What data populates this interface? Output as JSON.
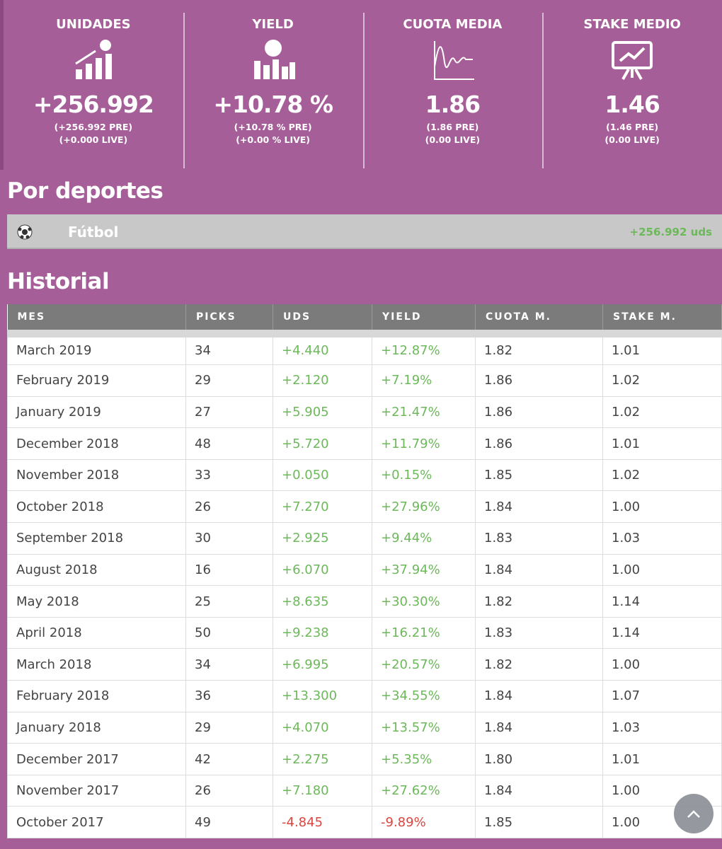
{
  "stats": [
    {
      "label": "UNIDADES",
      "value": "+256.992",
      "pre": "(+256.992 PRE)",
      "live": "(+0.000 LIVE)"
    },
    {
      "label": "YIELD",
      "value": "+10.78 %",
      "pre": "(+10.78 % PRE)",
      "live": "(+0.00 % LIVE)"
    },
    {
      "label": "CUOTA MEDIA",
      "value": "1.86",
      "pre": "(1.86 PRE)",
      "live": "(0.00 LIVE)"
    },
    {
      "label": "STAKE MEDIO",
      "value": "1.46",
      "pre": "(1.46 PRE)",
      "live": "(0.00 LIVE)"
    }
  ],
  "sports": {
    "title": "Por deportes",
    "name": "Fútbol",
    "value": "+256.992 uds"
  },
  "history": {
    "title": "Historial",
    "columns": [
      "MES",
      "PICKS",
      "UDS",
      "YIELD",
      "CUOTA M.",
      "STAKE M."
    ],
    "rows": [
      [
        "March 2019",
        "34",
        "+4.440",
        "+12.87%",
        "1.82",
        "1.01"
      ],
      [
        "February 2019",
        "29",
        "+2.120",
        "+7.19%",
        "1.86",
        "1.02"
      ],
      [
        "January 2019",
        "27",
        "+5.905",
        "+21.47%",
        "1.86",
        "1.02"
      ],
      [
        "December 2018",
        "48",
        "+5.720",
        "+11.79%",
        "1.86",
        "1.01"
      ],
      [
        "November 2018",
        "33",
        "+0.050",
        "+0.15%",
        "1.85",
        "1.02"
      ],
      [
        "October 2018",
        "26",
        "+7.270",
        "+27.96%",
        "1.84",
        "1.00"
      ],
      [
        "September 2018",
        "30",
        "+2.925",
        "+9.44%",
        "1.83",
        "1.03"
      ],
      [
        "August 2018",
        "16",
        "+6.070",
        "+37.94%",
        "1.84",
        "1.00"
      ],
      [
        "May 2018",
        "25",
        "+8.635",
        "+30.30%",
        "1.82",
        "1.14"
      ],
      [
        "April 2018",
        "50",
        "+9.238",
        "+16.21%",
        "1.83",
        "1.14"
      ],
      [
        "March 2018",
        "34",
        "+6.995",
        "+20.57%",
        "1.82",
        "1.00"
      ],
      [
        "February 2018",
        "36",
        "+13.300",
        "+34.55%",
        "1.84",
        "1.07"
      ],
      [
        "January 2018",
        "29",
        "+4.070",
        "+13.57%",
        "1.84",
        "1.03"
      ],
      [
        "December 2017",
        "42",
        "+2.275",
        "+5.35%",
        "1.80",
        "1.01"
      ],
      [
        "November 2017",
        "26",
        "+7.180",
        "+27.62%",
        "1.84",
        "1.00"
      ],
      [
        "October 2017",
        "49",
        "-4.845",
        "-9.89%",
        "1.85",
        "1.00"
      ]
    ]
  }
}
